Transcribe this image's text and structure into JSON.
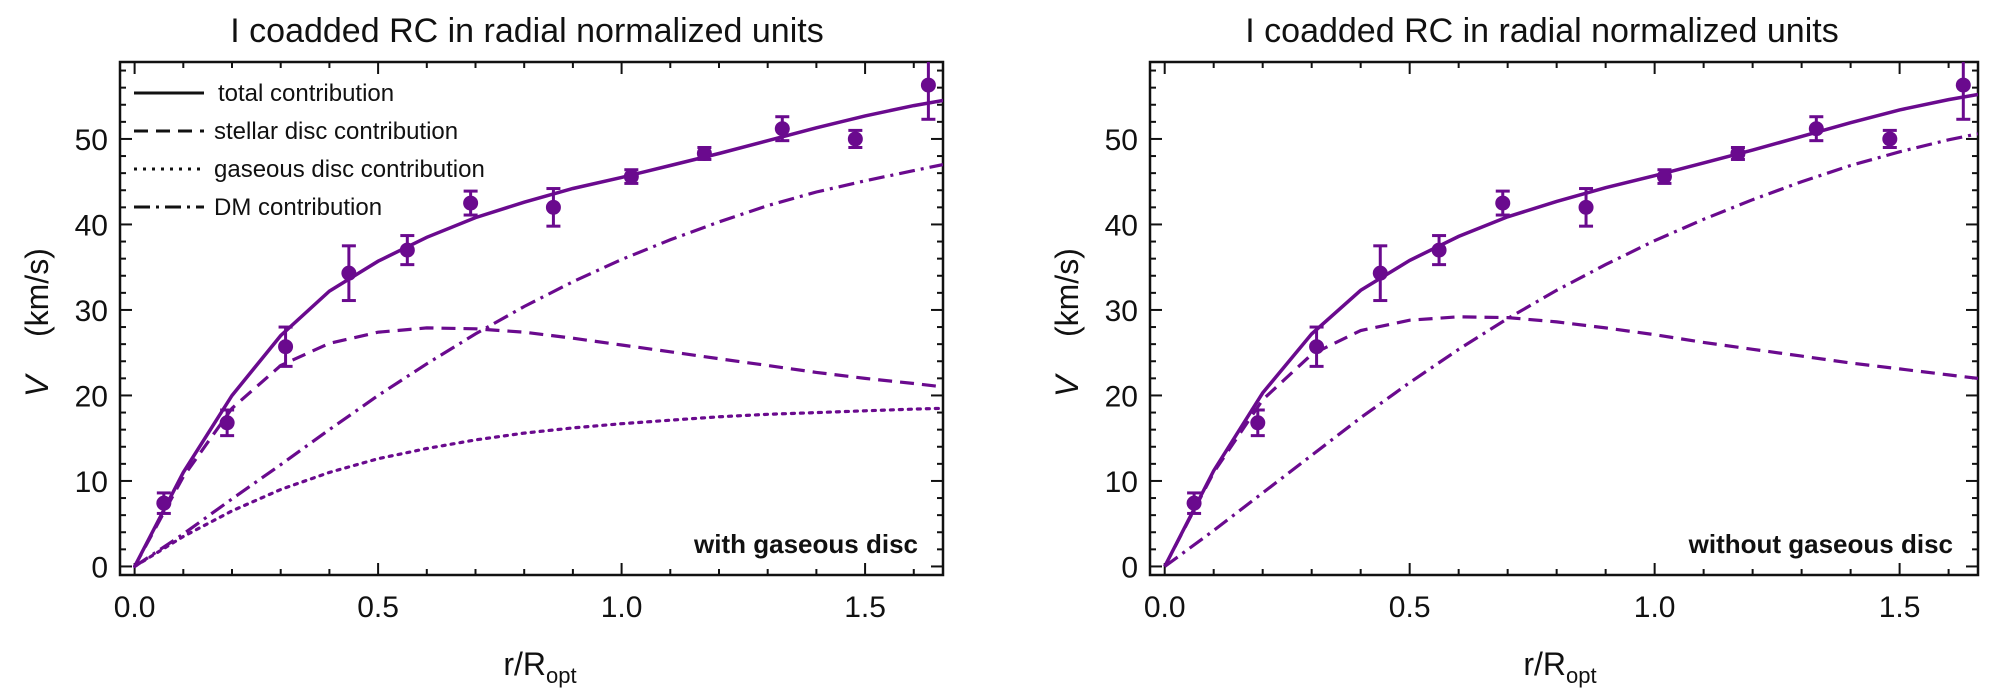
{
  "colors": {
    "series": "#6a0a8e",
    "frame": "#111111"
  },
  "chart_data": [
    {
      "type": "line",
      "title": "I coadded RC in radial normalized units",
      "xlabel": "r/R",
      "xlabel_sub": "opt",
      "ylabel": "V",
      "ylabel_unit": "(km/s)",
      "xlim": [
        -0.03,
        1.66
      ],
      "ylim": [
        -1,
        59
      ],
      "xticks": [
        0.0,
        0.5,
        1.0,
        1.5
      ],
      "xtick_labels": [
        "0.0",
        "0.5",
        "1.0",
        "1.5"
      ],
      "yticks": [
        0,
        10,
        20,
        30,
        40,
        50
      ],
      "ytick_labels": [
        "0",
        "10",
        "20",
        "30",
        "40",
        "50"
      ],
      "legend_position": "top-left",
      "legend": [
        {
          "label": "total contribution",
          "style": "solid"
        },
        {
          "label": "stellar disc contribution",
          "style": "dashed"
        },
        {
          "label": "gaseous disc contribution",
          "style": "dotted"
        },
        {
          "label": "DM contribution",
          "style": "dashdot"
        }
      ],
      "annotation": "with gaseous disc",
      "points": {
        "x": [
          0.06,
          0.19,
          0.31,
          0.44,
          0.56,
          0.69,
          0.86,
          1.02,
          1.17,
          1.33,
          1.48,
          1.63
        ],
        "y": [
          7.4,
          16.8,
          25.7,
          34.3,
          37.0,
          42.5,
          42.0,
          45.6,
          48.3,
          51.2,
          50.0,
          56.3
        ],
        "err": [
          1.2,
          1.5,
          2.3,
          3.2,
          1.7,
          1.4,
          2.2,
          0.8,
          0.7,
          1.4,
          1.0,
          4.0
        ]
      },
      "series": [
        {
          "name": "total contribution",
          "style": "solid",
          "x": [
            0,
            0.1,
            0.2,
            0.3,
            0.4,
            0.5,
            0.6,
            0.7,
            0.8,
            0.9,
            1.0,
            1.1,
            1.2,
            1.3,
            1.4,
            1.5,
            1.6,
            1.66
          ],
          "y": [
            0,
            11.0,
            20.0,
            27.0,
            32.2,
            35.7,
            38.5,
            40.8,
            42.6,
            44.2,
            45.5,
            46.9,
            48.3,
            49.8,
            51.3,
            52.7,
            53.9,
            54.5
          ]
        },
        {
          "name": "stellar disc contribution",
          "style": "dashed",
          "x": [
            0,
            0.1,
            0.2,
            0.3,
            0.4,
            0.5,
            0.6,
            0.7,
            0.8,
            0.9,
            1.0,
            1.1,
            1.2,
            1.3,
            1.4,
            1.5,
            1.6,
            1.66
          ],
          "y": [
            0,
            10.5,
            18.5,
            23.5,
            26.1,
            27.4,
            27.9,
            27.8,
            27.4,
            26.7,
            25.9,
            25.1,
            24.3,
            23.5,
            22.7,
            22.0,
            21.4,
            21.0
          ]
        },
        {
          "name": "gaseous disc contribution",
          "style": "dotted",
          "x": [
            0,
            0.1,
            0.2,
            0.3,
            0.4,
            0.5,
            0.6,
            0.7,
            0.8,
            0.9,
            1.0,
            1.1,
            1.2,
            1.3,
            1.4,
            1.5,
            1.6,
            1.66
          ],
          "y": [
            0,
            3.5,
            6.5,
            9.0,
            11.0,
            12.6,
            13.8,
            14.8,
            15.6,
            16.2,
            16.7,
            17.1,
            17.5,
            17.8,
            18.0,
            18.2,
            18.4,
            18.5
          ]
        },
        {
          "name": "DM contribution",
          "style": "dashdot",
          "x": [
            0,
            0.1,
            0.2,
            0.3,
            0.4,
            0.5,
            0.6,
            0.7,
            0.8,
            0.9,
            1.0,
            1.1,
            1.2,
            1.3,
            1.4,
            1.5,
            1.6,
            1.66
          ],
          "y": [
            0,
            3.8,
            7.9,
            11.9,
            16.0,
            20.0,
            23.7,
            27.2,
            30.4,
            33.3,
            35.9,
            38.2,
            40.3,
            42.2,
            43.8,
            45.1,
            46.3,
            47.0
          ]
        }
      ]
    },
    {
      "type": "line",
      "title": "I coadded RC in radial normalized units",
      "xlabel": "r/R",
      "xlabel_sub": "opt",
      "ylabel": "V",
      "ylabel_unit": "(km/s)",
      "xlim": [
        -0.03,
        1.66
      ],
      "ylim": [
        -1,
        59
      ],
      "xticks": [
        0.0,
        0.5,
        1.0,
        1.5
      ],
      "xtick_labels": [
        "0.0",
        "0.5",
        "1.0",
        "1.5"
      ],
      "yticks": [
        0,
        10,
        20,
        30,
        40,
        50
      ],
      "ytick_labels": [
        "0",
        "10",
        "20",
        "30",
        "40",
        "50"
      ],
      "legend": [],
      "annotation": "without gaseous disc",
      "points": {
        "x": [
          0.06,
          0.19,
          0.31,
          0.44,
          0.56,
          0.69,
          0.86,
          1.02,
          1.17,
          1.33,
          1.48,
          1.63
        ],
        "y": [
          7.4,
          16.8,
          25.7,
          34.3,
          37.0,
          42.5,
          42.0,
          45.6,
          48.3,
          51.2,
          50.0,
          56.3
        ],
        "err": [
          1.2,
          1.5,
          2.3,
          3.2,
          1.7,
          1.4,
          2.2,
          0.8,
          0.7,
          1.4,
          1.0,
          4.0
        ]
      },
      "series": [
        {
          "name": "total contribution",
          "style": "solid",
          "x": [
            0,
            0.1,
            0.2,
            0.3,
            0.4,
            0.5,
            0.6,
            0.7,
            0.8,
            0.9,
            1.0,
            1.1,
            1.2,
            1.3,
            1.4,
            1.5,
            1.6,
            1.66
          ],
          "y": [
            0,
            11.2,
            20.3,
            27.2,
            32.3,
            35.8,
            38.6,
            40.9,
            42.7,
            44.3,
            45.7,
            47.2,
            48.7,
            50.3,
            51.9,
            53.4,
            54.6,
            55.2
          ]
        },
        {
          "name": "stellar disc contribution",
          "style": "dashed",
          "x": [
            0,
            0.1,
            0.2,
            0.3,
            0.4,
            0.5,
            0.6,
            0.7,
            0.8,
            0.9,
            1.0,
            1.1,
            1.2,
            1.3,
            1.4,
            1.5,
            1.6,
            1.66
          ],
          "y": [
            0,
            11.0,
            19.5,
            24.8,
            27.6,
            28.8,
            29.2,
            29.1,
            28.6,
            27.9,
            27.1,
            26.2,
            25.4,
            24.6,
            23.8,
            23.1,
            22.4,
            22.0
          ]
        },
        {
          "name": "DM contribution",
          "style": "dashdot",
          "x": [
            0,
            0.1,
            0.2,
            0.3,
            0.4,
            0.5,
            0.6,
            0.7,
            0.8,
            0.9,
            1.0,
            1.1,
            1.2,
            1.3,
            1.4,
            1.5,
            1.6,
            1.66
          ],
          "y": [
            0,
            4.2,
            8.6,
            13.0,
            17.4,
            21.5,
            25.4,
            29.0,
            32.3,
            35.3,
            38.1,
            40.6,
            42.9,
            45.0,
            46.9,
            48.5,
            49.9,
            50.6
          ]
        }
      ]
    }
  ]
}
